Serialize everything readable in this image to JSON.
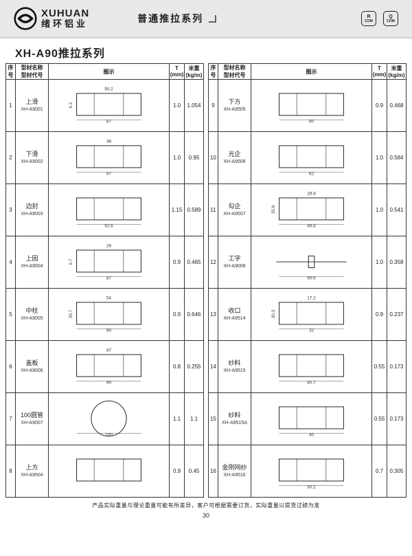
{
  "brand": {
    "en": "XUHUAN",
    "cn": "绪环铝业"
  },
  "header_series": "普通推拉系列",
  "badges": [
    "R",
    "Q"
  ],
  "badge_sub": "COM",
  "page_title": "XH-A90推拉系列",
  "columns": {
    "seq": "序号",
    "name_l1": "型材名称",
    "name_l2": "型材代号",
    "figure": "图示",
    "t": "T (mm)",
    "w": "米重 (kg/m)"
  },
  "left_rows": [
    {
      "seq": "1",
      "name": "上滑",
      "code": "XH-A9001",
      "t": "1.0",
      "w": "1.054",
      "dims": [
        "87",
        "50.2",
        "6.2"
      ]
    },
    {
      "seq": "2",
      "name": "下滑",
      "code": "XH-A9002",
      "t": "1.0",
      "w": "0.95",
      "dims": [
        "87",
        "38"
      ]
    },
    {
      "seq": "3",
      "name": "边封",
      "code": "XH-A9003",
      "t": "1.15",
      "w": "0.589",
      "dims": [
        "92.6"
      ]
    },
    {
      "seq": "4",
      "name": "上固",
      "code": "XH-A9004",
      "t": "0.9",
      "w": "0.465",
      "dims": [
        "87",
        "26",
        "6.7"
      ]
    },
    {
      "seq": "5",
      "name": "中柱",
      "code": "XH-A9005",
      "t": "0.9",
      "w": "0.646",
      "dims": [
        "85",
        "54",
        "35.7"
      ]
    },
    {
      "seq": "6",
      "name": "盖板",
      "code": "XH-A9006",
      "t": "0.8",
      "w": "0.255",
      "dims": [
        "90",
        "87"
      ]
    },
    {
      "seq": "7",
      "name": "100圆管",
      "code": "XH-A9007",
      "t": "1.1",
      "w": "1.1",
      "dims": [
        "100"
      ]
    },
    {
      "seq": "8",
      "name": "上方",
      "code": "XH-A9504",
      "t": "0.9",
      "w": "0.45",
      "dims": []
    }
  ],
  "right_rows": [
    {
      "seq": "9",
      "name": "下方",
      "code": "XH-A9505",
      "t": "0.9",
      "w": "0.468",
      "dims": [
        "60"
      ]
    },
    {
      "seq": "10",
      "name": "光企",
      "code": "XH-A9506",
      "t": "1.0",
      "w": "0.584",
      "dims": [
        "62"
      ]
    },
    {
      "seq": "11",
      "name": "勾企",
      "code": "XH-A9507",
      "t": "1.0",
      "w": "0.541",
      "dims": [
        "49.8",
        "29.8",
        "35.9"
      ]
    },
    {
      "seq": "12",
      "name": "工字",
      "code": "XH-A9008",
      "t": "1.0",
      "w": "0.358",
      "dims": [
        "90.6"
      ]
    },
    {
      "seq": "13",
      "name": "收口",
      "code": "XH-A9514",
      "t": "0.9",
      "w": "0.237",
      "dims": [
        "32",
        "17.2",
        "30.3"
      ]
    },
    {
      "seq": "14",
      "name": "纱料",
      "code": "XH-A9515",
      "t": "0.55",
      "w": "0.173",
      "dims": [
        "45.7"
      ]
    },
    {
      "seq": "15",
      "name": "纱料",
      "code": "XH-A9515A",
      "t": "0.55",
      "w": "0.173",
      "dims": [
        "40"
      ]
    },
    {
      "seq": "16",
      "name": "金刚网纱",
      "code": "XH-A9516",
      "t": "0.7",
      "w": "0.305",
      "dims": [
        "50.2"
      ]
    }
  ],
  "footnote": "产品实际重量与理论重量可能有所差异，客户可根据需要订货，实际重量以提货过磅为准",
  "page_number": "30",
  "colors": {
    "border": "#333333",
    "bg": "#ffffff",
    "header_bg": "#e9e9e9"
  }
}
